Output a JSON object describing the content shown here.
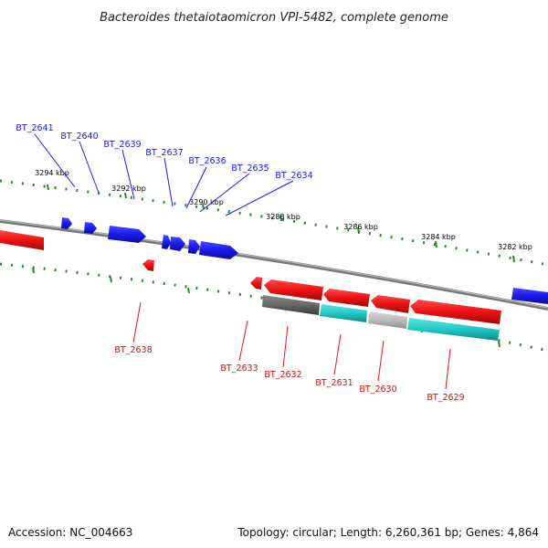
{
  "title": "Bacteroides thetaiotaomicron VPI-5482, complete genome",
  "footer": {
    "accession": "Accession: NC_004663",
    "summary": "Topology: circular; Length: 6,260,361 bp; Genes: 4,864"
  },
  "colors": {
    "forward": "#1a1aee",
    "reverse": "#ee1111",
    "backbone": "#7a7a7a",
    "tick": "#2a8a2a",
    "cyan": "#20c8c8",
    "gray_dark": "#666666",
    "gray_light": "#bbbbbb"
  },
  "kbp_ticks": [
    "3294 kbp",
    "3292 kbp",
    "3290 kbp",
    "3288 kbp",
    "3286 kbp",
    "3284 kbp",
    "3282 kbp"
  ],
  "forward_genes": [
    "BT_2641",
    "BT_2640",
    "BT_2639",
    "BT_2637",
    "BT_2636",
    "BT_2635",
    "BT_2634"
  ],
  "reverse_genes": [
    "BT_2638",
    "BT_2633",
    "BT_2632",
    "BT_2631",
    "BT_2630",
    "BT_2629"
  ]
}
